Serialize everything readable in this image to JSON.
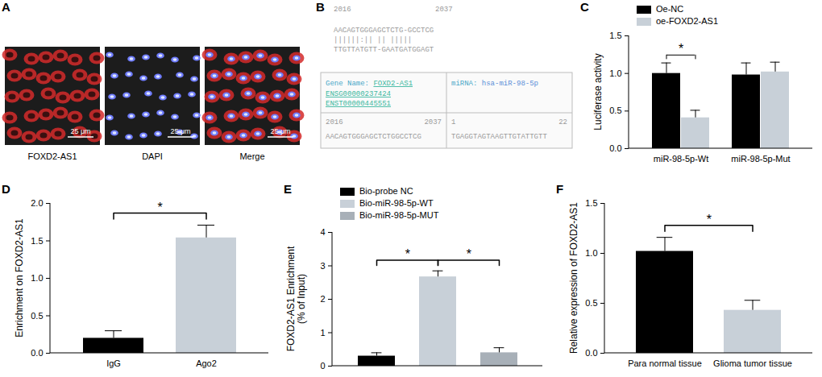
{
  "panels": {
    "A": {
      "label": "A",
      "images": [
        "FOXD2-AS1",
        "DAPI",
        "Merge"
      ],
      "scale_bar": "25 μm"
    },
    "B": {
      "label": "B",
      "top": {
        "start": "2016",
        "end": "2037",
        "seq1": "AACAGTGGGAGCTCTG-GCCTCG",
        "match": "||||||:|| ||  |||||",
        "seq2": "TTGTTATGTT-GAATGATGGAGT"
      },
      "box": {
        "gene_label": "Gene Name:",
        "gene": "FOXD2-AS1",
        "ids": [
          "ENSG00000237424",
          "ENST00000445551"
        ],
        "mirna_label": "miRNA:",
        "mirna": "hsa-miR-98-5p",
        "left": {
          "start": "2016",
          "end": "2037",
          "seq": "AACAGTGGGAGCTCTGGCCTCG"
        },
        "right": {
          "start": "1",
          "end": "22",
          "seq": "TGAGGTAGTAAGTTGTATTGTT"
        }
      }
    }
  },
  "chart_data": [
    {
      "panel": "C",
      "type": "bar",
      "categories": [
        "miR-98-5p-Wt",
        "miR-98-5p-Mut"
      ],
      "series": [
        {
          "name": "Oe-NC",
          "color": "#000000",
          "values": [
            1.0,
            0.98
          ],
          "errors": [
            0.14,
            0.16
          ]
        },
        {
          "name": "oe-FOXD2-AS1",
          "color": "#c8d0d8",
          "values": [
            0.41,
            1.02
          ],
          "errors": [
            0.1,
            0.13
          ]
        }
      ],
      "y_label": "Luciferase activity",
      "ylim": [
        0,
        1.5
      ],
      "yticks": [
        {
          "value": 0,
          "label": "0.0"
        },
        {
          "value": 0.5,
          "label": "0.5"
        },
        {
          "value": 1,
          "label": "1.0"
        },
        {
          "value": 1.5,
          "label": "1.5"
        }
      ],
      "legend": "top-left",
      "annotations": [
        {
          "label": "*",
          "category": "miR-98-5p-Wt",
          "series": [
            "Oe-NC",
            "oe-FOXD2-AS1"
          ]
        }
      ]
    },
    {
      "panel": "D",
      "type": "bar",
      "categories": [
        "IgG",
        "Ago2"
      ],
      "values": [
        0.2,
        1.54
      ],
      "errors": [
        0.1,
        0.17
      ],
      "colors": [
        "#000000",
        "#c8d0d8"
      ],
      "y_label": "Enrichment on FOXD2-AS1",
      "ylim": [
        0,
        2
      ],
      "yticks": [
        {
          "value": 0,
          "label": "0.0"
        },
        {
          "value": 0.5,
          "label": "0.5"
        },
        {
          "value": 1,
          "label": "1.0"
        },
        {
          "value": 1.5,
          "label": "1.5"
        },
        {
          "value": 2,
          "label": "2.0"
        }
      ],
      "annotations": [
        {
          "label": "*",
          "categories": [
            "IgG",
            "Ago2"
          ]
        }
      ]
    },
    {
      "panel": "E",
      "type": "bar",
      "categories": [
        "Bio-probe NC",
        "Bio-miR-98-5p-WT",
        "Bio-miR-98-5p-MUT"
      ],
      "values": [
        0.3,
        2.67,
        0.4
      ],
      "errors": [
        0.1,
        0.18,
        0.15
      ],
      "colors": [
        "#000000",
        "#c8d0d8",
        "#a8b0b8"
      ],
      "y_label": [
        "FOXD2-AS1 Enrichment",
        "(% of Input)"
      ],
      "ylim": [
        0,
        4
      ],
      "yticks": [
        0,
        1,
        2,
        3,
        4
      ],
      "legend": "top",
      "tick_labels": "y",
      "annotations": [
        {
          "label": "*",
          "categories": [
            "Bio-probe NC",
            "Bio-miR-98-5p-WT"
          ]
        },
        {
          "label": "*",
          "categories": [
            "Bio-miR-98-5p-WT",
            "Bio-miR-98-5p-MUT"
          ]
        }
      ]
    },
    {
      "panel": "F",
      "type": "bar",
      "categories": [
        "Para normal tissue",
        "Glioma tumor tissue"
      ],
      "values": [
        1.02,
        0.43
      ],
      "errors": [
        0.14,
        0.1
      ],
      "colors": [
        "#000000",
        "#c8d0d8"
      ],
      "y_label": "Relative expression of FOXD2-AS1",
      "ylim": [
        0,
        1.5
      ],
      "yticks": [
        {
          "value": 0,
          "label": "0.0"
        },
        {
          "value": 0.5,
          "label": "0.5"
        },
        {
          "value": 1,
          "label": "1.0"
        },
        {
          "value": 1.5,
          "label": "1.5"
        }
      ],
      "annotations": [
        {
          "label": "*",
          "categories": [
            "Para normal tissue",
            "Glioma tumor tissue"
          ]
        }
      ]
    }
  ]
}
